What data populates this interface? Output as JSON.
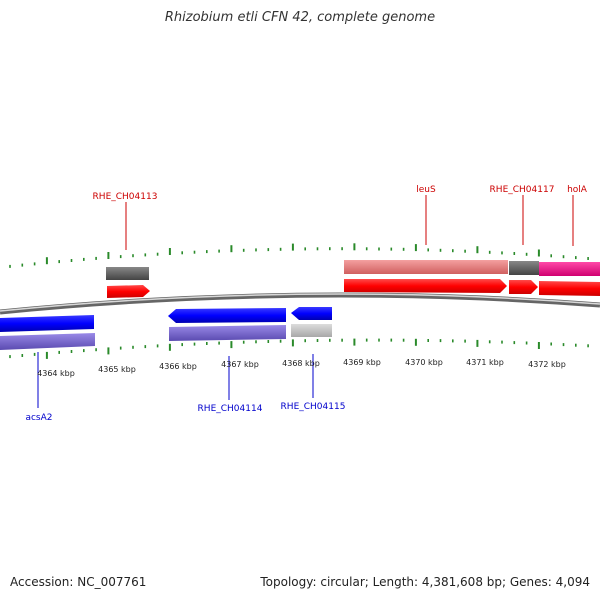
{
  "title": "Rhizobium etli CFN 42, complete genome",
  "footer": {
    "accession": "Accession: NC_007761",
    "topology": "Topology: circular; Length: 4,381,608 bp; Genes: 4,094"
  },
  "ruler": {
    "labels": [
      "4364 kbp",
      "4365 kbp",
      "4366 kbp",
      "4367 kbp",
      "4368 kbp",
      "4369 kbp",
      "4370 kbp",
      "4371 kbp",
      "4372 kbp"
    ]
  },
  "genes_top": [
    {
      "name": "RHE_CH04113",
      "strand": "+",
      "color": "#ff0000"
    },
    {
      "name": "leuS",
      "strand": "+",
      "color": "#ff0000"
    },
    {
      "name": "RHE_CH04117",
      "strand": "+",
      "color": "#ff0000"
    },
    {
      "name": "holA",
      "strand": "+",
      "color": "#ff0000"
    }
  ],
  "genes_bottom": [
    {
      "name": "acsA2",
      "strand": "-",
      "color": "#0000ff"
    },
    {
      "name": "RHE_CH04114",
      "strand": "-",
      "color": "#0000ff"
    },
    {
      "name": "RHE_CH04115",
      "strand": "-",
      "color": "#0000ff"
    }
  ],
  "colors": {
    "forward_cds": "#ff0000",
    "reverse_cds": "#0000ff",
    "forward_feature": "#e07070",
    "reverse_feature": "#7a6ad0",
    "grey_feature": "#666666",
    "light_grey_feature": "#c0c0c0",
    "magenta_feature": "#ff1493",
    "tick": "#2a8a2a",
    "backbone": "#888888"
  }
}
